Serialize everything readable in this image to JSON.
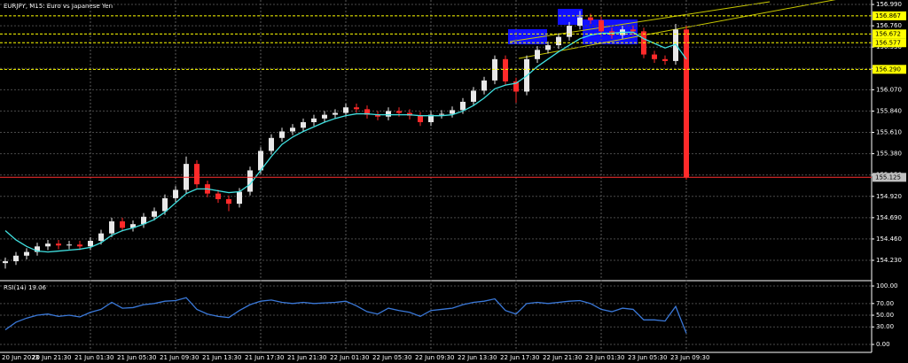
{
  "chart_data": [
    {
      "type": "candlestick",
      "title": "EURJPY, M15:  Euro vs Japanese Yen",
      "categories": [
        "20 Jun 2023",
        null,
        null,
        null,
        "20 Jun 21:30",
        null,
        null,
        null,
        "21 Jun 01:30",
        null,
        null,
        null,
        "21 Jun 05:30",
        null,
        null,
        null,
        "21 Jun 09:30",
        null,
        null,
        null,
        "21 Jun 13:30",
        null,
        null,
        null,
        "21 Jun 17:30",
        null,
        null,
        null,
        "21 Jun 21:30",
        null,
        null,
        null,
        "22 Jun 01:30",
        null,
        null,
        null,
        "22 Jun 05:30",
        null,
        null,
        null,
        "22 Jun 09:30",
        null,
        null,
        null,
        "22 Jun 13:30",
        null,
        null,
        null,
        "22 Jun 17:30",
        null,
        null,
        null,
        "22 Jun 21:30",
        null,
        null,
        null,
        "23 Jun 01:30",
        null,
        null,
        null,
        "23 Jun 05:30",
        null,
        null,
        null,
        "23 Jun 09:30"
      ],
      "open": [
        154.2,
        154.22,
        154.28,
        154.32,
        154.38,
        154.41,
        154.39,
        154.4,
        154.38,
        154.44,
        154.52,
        154.65,
        154.58,
        154.62,
        154.7,
        154.76,
        154.9,
        154.99,
        155.27,
        155.05,
        154.95,
        154.89,
        154.84,
        154.97,
        155.2,
        155.41,
        155.55,
        155.62,
        155.66,
        155.72,
        155.76,
        155.8,
        155.82,
        155.88,
        155.86,
        155.8,
        155.78,
        155.84,
        155.82,
        155.79,
        155.72,
        155.8,
        155.81,
        155.85,
        155.94,
        156.06,
        156.17,
        156.4,
        156.16,
        156.05,
        156.4,
        156.5,
        156.55,
        156.64,
        156.76,
        156.85,
        156.82,
        156.7,
        156.66,
        156.72,
        156.7,
        156.45,
        156.4,
        156.38,
        156.72
      ],
      "high": [
        154.26,
        154.32,
        154.36,
        154.42,
        154.45,
        154.45,
        154.44,
        154.44,
        154.48,
        154.56,
        154.69,
        154.69,
        154.66,
        154.74,
        154.8,
        154.94,
        155.03,
        155.35,
        155.31,
        155.09,
        154.99,
        154.93,
        155.01,
        155.24,
        155.45,
        155.59,
        155.66,
        155.7,
        155.76,
        155.8,
        155.84,
        155.86,
        155.92,
        155.92,
        155.9,
        155.84,
        155.88,
        155.88,
        155.86,
        155.83,
        155.84,
        155.85,
        155.89,
        155.98,
        156.1,
        156.21,
        156.44,
        156.44,
        156.2,
        156.44,
        156.54,
        156.59,
        156.68,
        156.8,
        156.92,
        156.89,
        156.86,
        156.74,
        156.76,
        156.76,
        156.74,
        156.49,
        156.44,
        156.78,
        156.76
      ],
      "low": [
        154.14,
        154.18,
        154.24,
        154.28,
        154.34,
        154.35,
        154.35,
        154.34,
        154.34,
        154.4,
        154.48,
        154.54,
        154.54,
        154.58,
        154.66,
        154.72,
        154.86,
        154.95,
        155.01,
        154.91,
        154.85,
        154.76,
        154.8,
        154.93,
        155.16,
        155.37,
        155.51,
        155.58,
        155.62,
        155.68,
        155.72,
        155.76,
        155.78,
        155.82,
        155.76,
        155.74,
        155.74,
        155.78,
        155.75,
        155.68,
        155.68,
        155.76,
        155.77,
        155.81,
        155.9,
        156.02,
        156.13,
        156.12,
        155.93,
        156.01,
        156.36,
        156.46,
        156.51,
        156.6,
        156.72,
        156.78,
        156.66,
        156.62,
        156.62,
        156.66,
        156.41,
        156.36,
        156.34,
        156.34,
        155.1
      ],
      "close": [
        154.22,
        154.28,
        154.32,
        154.38,
        154.41,
        154.39,
        154.4,
        154.38,
        154.44,
        154.52,
        154.65,
        154.58,
        154.62,
        154.7,
        154.76,
        154.9,
        154.99,
        155.27,
        155.05,
        154.95,
        154.89,
        154.84,
        154.97,
        155.2,
        155.41,
        155.55,
        155.62,
        155.66,
        155.72,
        155.76,
        155.8,
        155.82,
        155.88,
        155.86,
        155.8,
        155.78,
        155.84,
        155.82,
        155.79,
        155.72,
        155.8,
        155.81,
        155.85,
        155.94,
        156.06,
        156.17,
        156.4,
        156.16,
        156.05,
        156.4,
        156.5,
        156.55,
        156.64,
        156.76,
        156.85,
        156.82,
        156.7,
        156.66,
        156.72,
        156.7,
        156.45,
        156.4,
        156.38,
        156.72,
        155.125
      ],
      "up_color": "#e8e8e8",
      "down_color": "#ff2a2a",
      "ma": {
        "color": "#40e0e0",
        "values": [
          154.55,
          154.45,
          154.38,
          154.33,
          154.32,
          154.33,
          154.34,
          154.35,
          154.37,
          154.42,
          154.5,
          154.55,
          154.58,
          154.62,
          154.67,
          154.75,
          154.85,
          154.95,
          155.0,
          155.0,
          154.98,
          154.96,
          154.97,
          155.05,
          155.2,
          155.35,
          155.48,
          155.56,
          155.62,
          155.67,
          155.72,
          155.76,
          155.79,
          155.81,
          155.81,
          155.8,
          155.8,
          155.8,
          155.8,
          155.79,
          155.79,
          155.79,
          155.8,
          155.84,
          155.9,
          155.98,
          156.08,
          156.12,
          156.14,
          156.22,
          156.32,
          156.4,
          156.48,
          156.55,
          156.62,
          156.66,
          156.68,
          156.68,
          156.69,
          156.69,
          156.62,
          156.57,
          156.52,
          156.56,
          156.4
        ]
      },
      "ylim": [
        154.02,
        157.038
      ],
      "yticks": [
        {
          "value": 156.99,
          "label": "156.990"
        },
        {
          "value": 156.76,
          "label": "156.760"
        },
        {
          "value": 156.53,
          "label": "156.530"
        },
        {
          "value": 156.3,
          "label": "156.300"
        },
        {
          "value": 156.07,
          "label": "156.070"
        },
        {
          "value": 155.84,
          "label": "155.840"
        },
        {
          "value": 155.61,
          "label": "155.610"
        },
        {
          "value": 155.38,
          "label": "155.380"
        },
        {
          "value": 155.15,
          "label": "155.150"
        },
        {
          "value": 154.92,
          "label": "154.920"
        },
        {
          "value": 154.69,
          "label": "154.690"
        },
        {
          "value": 154.46,
          "label": "154.460"
        },
        {
          "value": 154.23,
          "label": "154.230"
        }
      ],
      "levels": [
        {
          "value": 156.867,
          "label": "156.867",
          "color": "#ffff00"
        },
        {
          "value": 156.672,
          "label": "156.672",
          "color": "#ffff00"
        },
        {
          "value": 156.577,
          "label": "156.577",
          "color": "#ffff00"
        },
        {
          "value": 156.29,
          "label": "156.290",
          "color": "#ffff00"
        },
        {
          "value": 155.125,
          "label": "155.125",
          "color": "#c0c0c0"
        }
      ]
    },
    {
      "type": "line",
      "title": "RSI(14) 19.06",
      "color": "#3a78d8",
      "values": [
        25,
        38,
        45,
        50,
        52,
        48,
        50,
        47,
        55,
        60,
        72,
        62,
        63,
        68,
        70,
        74,
        75,
        80,
        60,
        52,
        48,
        46,
        58,
        68,
        74,
        76,
        72,
        70,
        72,
        70,
        71,
        72,
        74,
        66,
        56,
        52,
        62,
        58,
        55,
        48,
        58,
        60,
        62,
        68,
        72,
        74,
        78,
        58,
        52,
        70,
        72,
        70,
        72,
        74,
        75,
        70,
        60,
        56,
        62,
        60,
        42,
        42,
        40,
        65,
        19.06
      ],
      "ylim": [
        -13.6,
        107.6
      ],
      "yticks": [
        {
          "value": 100,
          "label": "100.00"
        },
        {
          "value": 70,
          "label": "70.00"
        },
        {
          "value": 50,
          "label": "50.00"
        },
        {
          "value": 30,
          "label": "30.00"
        },
        {
          "value": 0,
          "label": "0.00"
        }
      ]
    }
  ]
}
